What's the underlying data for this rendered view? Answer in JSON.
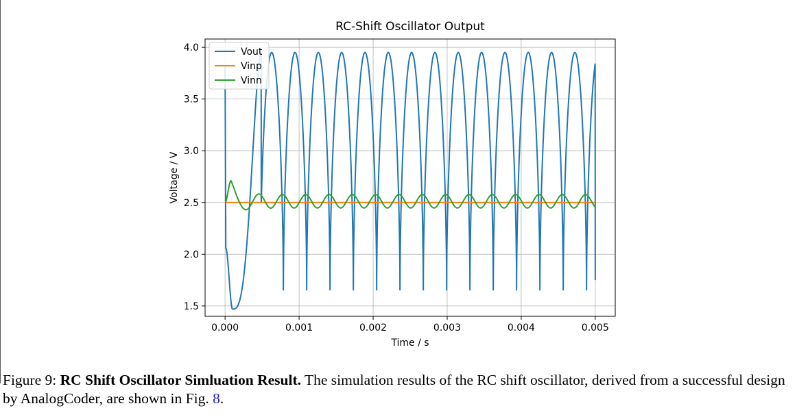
{
  "chart_data": {
    "type": "line",
    "title": "RC-Shift Oscillator Output",
    "xlabel": "Time / s",
    "ylabel": "Voltage / V",
    "xlim": [
      -0.00027,
      0.00527
    ],
    "ylim": [
      1.4,
      4.08
    ],
    "xticks": [
      0.0,
      0.001,
      0.002,
      0.003,
      0.004,
      0.005
    ],
    "xtick_labels": [
      "0.000",
      "0.001",
      "0.002",
      "0.003",
      "0.004",
      "0.005"
    ],
    "yticks": [
      1.5,
      2.0,
      2.5,
      3.0,
      3.5,
      4.0
    ],
    "ytick_labels": [
      "1.5",
      "2.0",
      "2.5",
      "3.0",
      "3.5",
      "4.0"
    ],
    "grid": true,
    "legend_position": "top-left",
    "series": [
      {
        "name": "Vout",
        "color": "#1f77b4",
        "description": "Square-like oscillation between ~1.65 V and ~3.95 V, period ~0.000315 s, after an initial dip to ~1.47 V at t~0.0001 s",
        "start_value": 3.82,
        "initial_min": 1.47,
        "initial_min_time": 0.0001,
        "high": 3.95,
        "low": 1.65,
        "period": 0.000315,
        "first_peak_time": 0.00063,
        "end_value": 1.75
      },
      {
        "name": "Vinp",
        "color": "#ff7f0e",
        "description": "Constant",
        "value": 2.5
      },
      {
        "name": "Vinn",
        "color": "#2ca02c",
        "description": "Damped overshoot to ~2.71 V then small oscillation around 2.51 V",
        "start_value": 2.5,
        "first_peak": 2.71,
        "first_peak_time": 8e-05,
        "center": 2.512,
        "amplitude": 0.065,
        "period": 0.000315,
        "end_value": 2.54
      }
    ]
  },
  "caption": {
    "label": "Figure 9:",
    "bold": "RC Shift Oscillator Simluation Result.",
    "text_before_ref": "The simulation results of the RC shift oscillator, derived from a successful design by AnalogCoder, are shown in Fig.",
    "ref": "8",
    "text_after_ref": "."
  }
}
